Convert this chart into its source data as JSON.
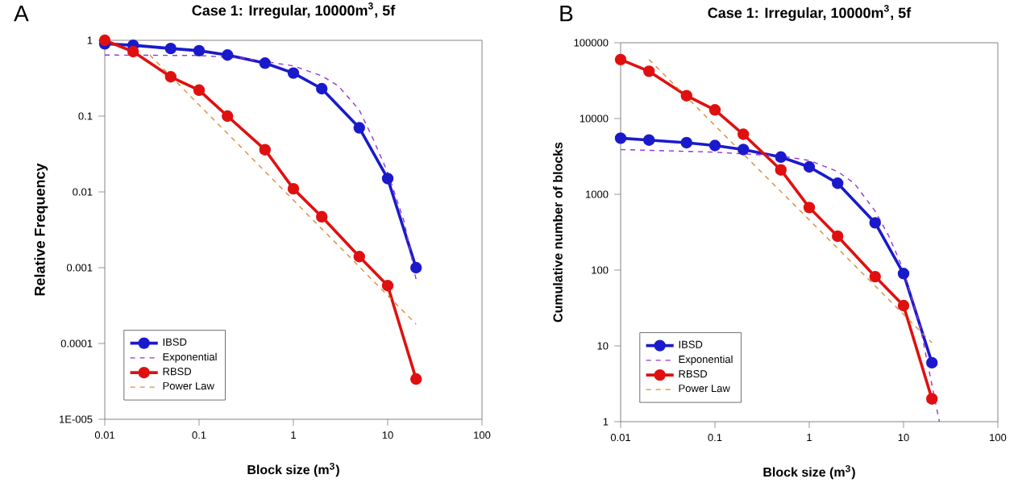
{
  "chart_data": [
    {
      "type": "line",
      "title": "Case 1: Irregular, 10000m$^{3}$, 5f",
      "xlabel": "Block size (m$^{3}$)",
      "ylabel": "Relative Frequency",
      "annotations": [
        "A"
      ],
      "log": "xy",
      "xlim": [
        0.01,
        100
      ],
      "xticks": [
        0.01,
        0.1,
        1,
        10,
        100
      ],
      "ylim": [
        1e-05,
        1
      ],
      "yticks": [
        {
          "value": 1e-05,
          "label": "1E-005"
        },
        0.0001,
        0.001,
        0.01,
        0.1,
        1
      ],
      "grid": false,
      "legend": "bottom left",
      "x": [
        0.01,
        0.02,
        0.05,
        0.1,
        0.2,
        0.5,
        1,
        2,
        5,
        10,
        20
      ],
      "series": [
        {
          "name": "IBSD",
          "color": "#1a1acc",
          "marker": "circle",
          "line_style": "solid",
          "values": [
            0.9,
            0.86,
            0.78,
            0.73,
            0.64,
            0.5,
            0.37,
            0.23,
            0.07,
            0.015,
            0.001
          ]
        },
        {
          "name": "Exponential",
          "color": "#9933cc",
          "marker": "none",
          "line_style": "dashed",
          "x": [
            0.01,
            0.1,
            0.3,
            1,
            2,
            3,
            5,
            7,
            10,
            15,
            20
          ],
          "values": [
            0.64,
            0.63,
            0.58,
            0.46,
            0.34,
            0.25,
            0.12,
            0.05,
            0.018,
            0.004,
            0.0007
          ]
        },
        {
          "name": "RBSD",
          "color": "#e01010",
          "marker": "circle",
          "line_style": "solid",
          "values": [
            1,
            0.71,
            0.33,
            0.22,
            0.1,
            0.036,
            0.011,
            0.0047,
            0.0014,
            0.00058,
            3.4e-05
          ]
        },
        {
          "name": "Power Law",
          "color": "#d98c3c",
          "marker": "none",
          "line_style": "dashed",
          "x": [
            0.03,
            20
          ],
          "values": [
            0.64,
            0.00018
          ]
        }
      ]
    },
    {
      "type": "line",
      "title": "Case 1: Irregular, 10000m$^{3}$, 5f",
      "xlabel": "Block size (m$^{3}$)",
      "ylabel": "Cumulative number of blocks",
      "annotations": [
        "B"
      ],
      "log": "xy",
      "xlim": [
        0.01,
        100
      ],
      "xticks": [
        0.01,
        0.1,
        1,
        10,
        100
      ],
      "ylim": [
        1,
        100000
      ],
      "yticks": [
        1,
        10,
        100,
        1000,
        10000,
        100000
      ],
      "grid": false,
      "legend": "bottom left",
      "x": [
        0.01,
        0.02,
        0.05,
        0.1,
        0.2,
        0.5,
        1,
        2,
        5,
        10,
        20
      ],
      "series": [
        {
          "name": "IBSD",
          "color": "#1a1acc",
          "marker": "circle",
          "line_style": "solid",
          "values": [
            5500,
            5200,
            4800,
            4400,
            3900,
            3100,
            2300,
            1400,
            420,
            90,
            6
          ]
        },
        {
          "name": "Exponential",
          "color": "#9933cc",
          "marker": "none",
          "line_style": "dashed",
          "x": [
            0.01,
            0.1,
            0.5,
            1,
            2,
            3,
            5,
            7,
            10,
            15,
            24
          ],
          "values": [
            3900,
            3600,
            3200,
            2800,
            2000,
            1400,
            600,
            280,
            100,
            18,
            1
          ]
        },
        {
          "name": "RBSD",
          "color": "#e01010",
          "marker": "circle",
          "line_style": "solid",
          "values": [
            60000,
            42000,
            20000,
            13000,
            6200,
            2100,
            670,
            280,
            82,
            34,
            2
          ]
        },
        {
          "name": "Power Law",
          "color": "#d98c3c",
          "marker": "none",
          "line_style": "dashed",
          "x": [
            0.02,
            20
          ],
          "values": [
            60000,
            11
          ]
        }
      ]
    }
  ]
}
